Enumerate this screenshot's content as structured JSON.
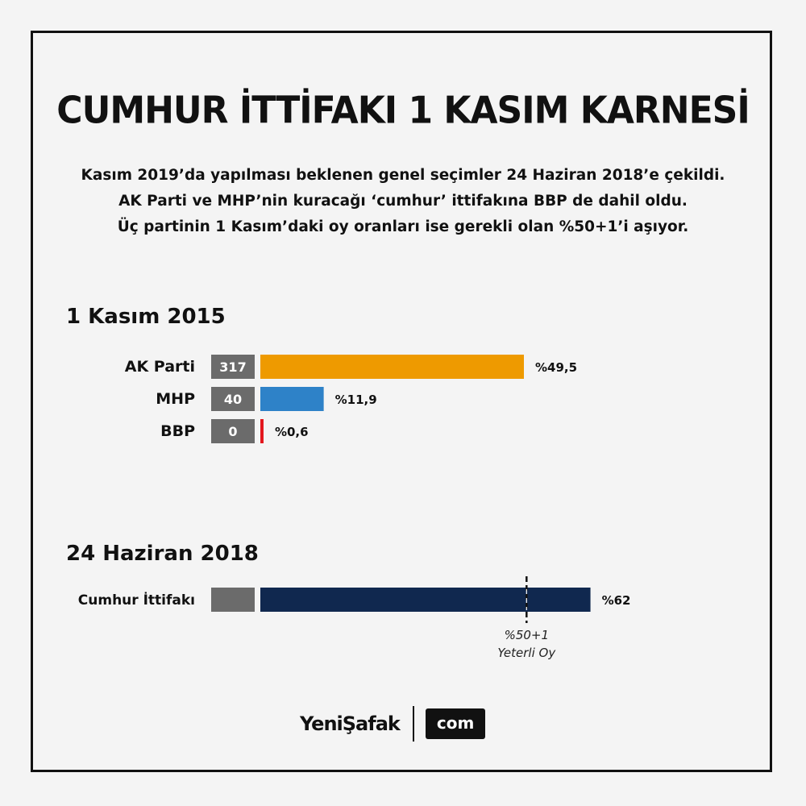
{
  "title": "CUMHUR İTTİFAKI 1 KASIM KARNESİ",
  "subtitle_lines": [
    "Kasım 2019’da yapılması beklenen genel seçimler 24 Haziran 2018’e çekildi.",
    "AK Parti ve MHP’nin kuracağı ‘cumhur’ ittifakına BBP de dahil oldu.",
    "Üç partinin 1 Kasım’daki oy oranları ise gerekli olan %50+1’i aşıyor."
  ],
  "chart_data": [
    {
      "type": "bar",
      "title": "1 Kasım 2015",
      "categories": [
        "AK Parti",
        "MHP",
        "BBP"
      ],
      "seats": [
        "317",
        "40",
        "0"
      ],
      "values": [
        49.5,
        11.9,
        0.6
      ],
      "value_labels": [
        "%49,5",
        "%11,9",
        "%0,6"
      ],
      "colors": [
        "#ee9a00",
        "#2e82c8",
        "#e3161d"
      ]
    },
    {
      "type": "bar",
      "title": "24 Haziran 2018",
      "categories": [
        "Cumhur İttifakı"
      ],
      "seats": [
        ""
      ],
      "values": [
        62
      ],
      "value_labels": [
        "%62"
      ],
      "colors": [
        "#10284f"
      ],
      "threshold": {
        "value": 50,
        "label_lines": [
          "%50+1",
          "Yeterli Oy"
        ]
      }
    }
  ],
  "logo": {
    "brand": "YeniŞafak",
    "suffix": "com"
  },
  "colors": {
    "seat_box": "#6b6b6b",
    "background": "#f4f4f4",
    "text": "#111111"
  }
}
